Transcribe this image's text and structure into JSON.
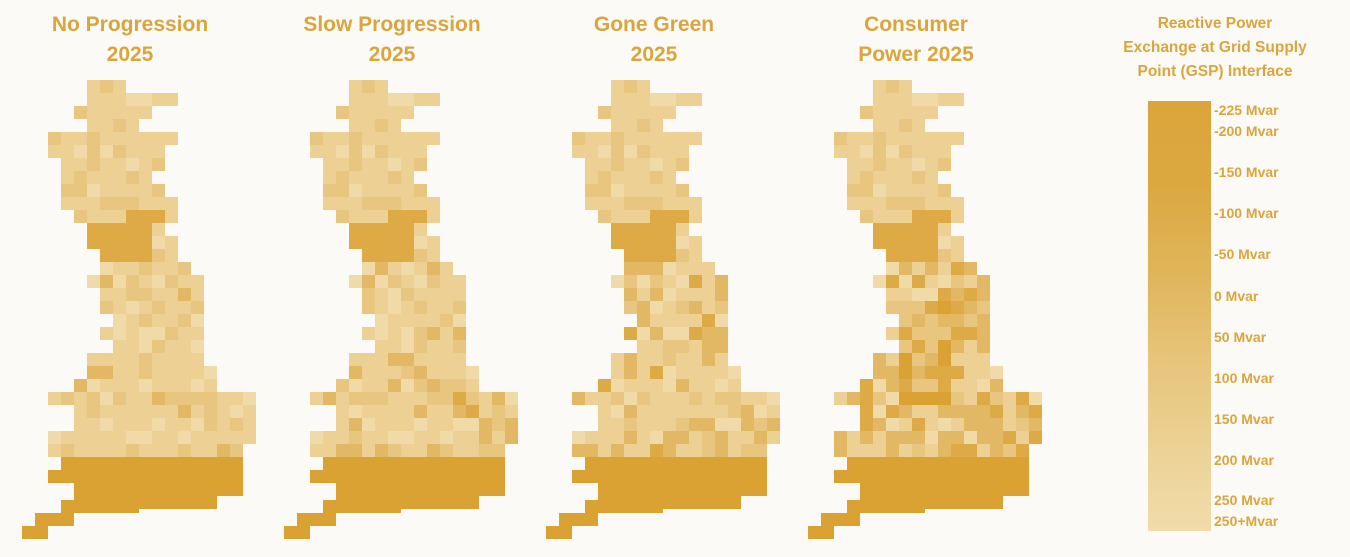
{
  "panels": [
    {
      "title": "No Progression\n2025",
      "variant": 0
    },
    {
      "title": "Slow Progression\n2025",
      "variant": 1
    },
    {
      "title": "Gone Green\n2025",
      "variant": 2
    },
    {
      "title": "Consumer\nPower 2025",
      "variant": 3
    }
  ],
  "legend": {
    "title": "Reactive Power\nExchange at Grid Supply\nPoint (GSP) Interface",
    "ticks": [
      {
        "label": "-225 Mvar",
        "value": -225
      },
      {
        "label": "-200 Mvar",
        "value": -200
      },
      {
        "label": "-150 Mvar",
        "value": -150
      },
      {
        "label": "-100 Mvar",
        "value": -100
      },
      {
        "label": "-50 Mvar",
        "value": -50
      },
      {
        "label": "0 Mvar",
        "value": 0
      },
      {
        "label": "50 Mvar",
        "value": 50
      },
      {
        "label": "100 Mvar",
        "value": 100
      },
      {
        "label": "150 Mvar",
        "value": 150
      },
      {
        "label": "200 Mvar",
        "value": 200
      },
      {
        "label": "250 Mvar",
        "value": 250
      },
      {
        "label": "250+Mvar",
        "value": 275
      }
    ]
  },
  "colors": {
    "title": "#dba53c",
    "scale_dark": "#dca53c",
    "scale_light": "#f1dcaa"
  }
}
